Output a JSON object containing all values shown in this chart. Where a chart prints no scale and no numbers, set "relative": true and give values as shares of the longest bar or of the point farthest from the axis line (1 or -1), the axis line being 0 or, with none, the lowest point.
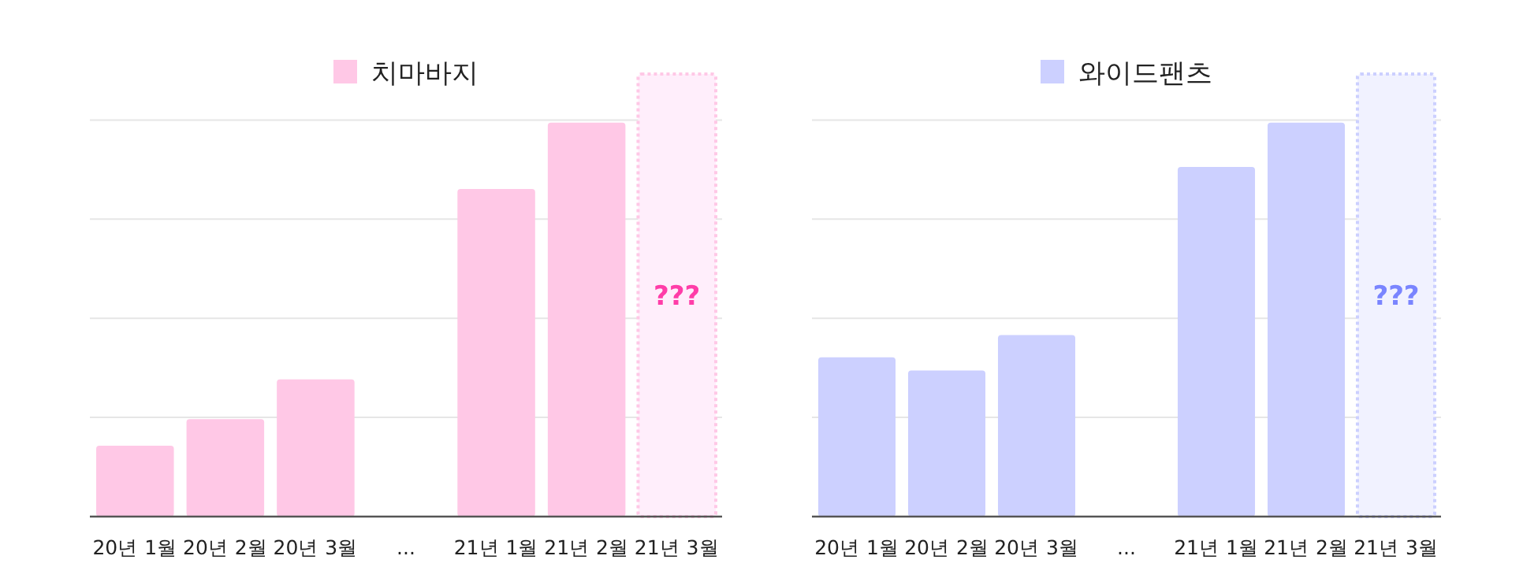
{
  "chart_data": [
    {
      "type": "bar",
      "relative": true,
      "grid": "y",
      "legend": "top",
      "categories": [
        "20년 1월",
        "20년 2월",
        "20년 3월",
        "...",
        "21년 1월",
        "21년 2월",
        "21년 3월"
      ],
      "series": [
        {
          "name": "치마바지",
          "color": "#ffc8e6",
          "values": [
            0.16,
            0.22,
            0.31,
            null,
            0.74,
            0.89,
            1
          ],
          "colors": [
            "#ffc8e6",
            "#ffc8e6",
            "#ffc8e6",
            null,
            "#ffc8e6",
            "#ffc8e6",
            "#ffeefb"
          ]
        }
      ],
      "annotations": [
        "???"
      ]
    },
    {
      "type": "bar",
      "relative": true,
      "grid": "y",
      "legend": "top",
      "categories": [
        "20년 1월",
        "20년 2월",
        "20년 3월",
        "...",
        "21년 1월",
        "21년 2월",
        "21년 3월"
      ],
      "series": [
        {
          "name": "와이드팬츠",
          "color": "#ccd0ff",
          "values": [
            0.36,
            0.33,
            0.41,
            null,
            0.79,
            0.89,
            1
          ],
          "colors": [
            "#ccd0ff",
            "#ccd0ff",
            "#ccd0ff",
            null,
            "#ccd0ff",
            "#ccd0ff",
            "#f1f2ff"
          ]
        }
      ],
      "annotations": [
        "???"
      ]
    }
  ]
}
